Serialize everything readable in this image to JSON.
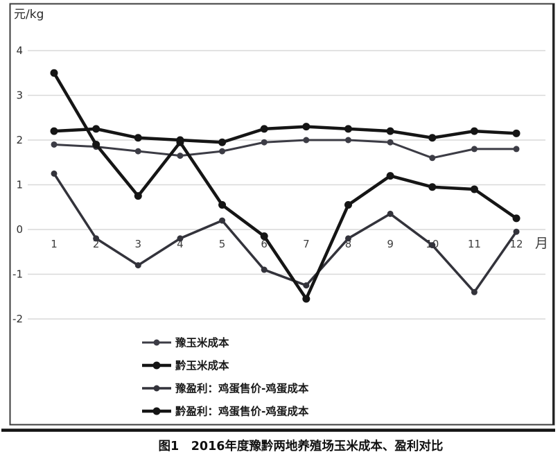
{
  "figure": {
    "unit_label": "元/kg",
    "x_axis_unit": "月",
    "caption": "图1　2016年度豫黔两地养殖场玉米成本、盈利对比"
  },
  "chart_data": {
    "type": "line",
    "title": "图1　2016年度豫黔两地养殖场玉米成本、盈利对比",
    "ylabel": "元/kg",
    "xlabel": "月",
    "ylim": [
      -2,
      4
    ],
    "y_ticks": [
      4,
      3,
      2,
      1,
      0,
      -1,
      -2
    ],
    "grid": true,
    "legend_position": "bottom",
    "categories": [
      "1",
      "2",
      "3",
      "4",
      "5",
      "6",
      "7",
      "8",
      "9",
      "10",
      "11",
      "12"
    ],
    "series": [
      {
        "name": "豫玉米成本",
        "color": "#3c3c45",
        "line_width": 3,
        "marker_radius": 4.5,
        "values": [
          1.9,
          1.85,
          1.75,
          1.65,
          1.75,
          1.95,
          2.0,
          2.0,
          1.95,
          1.6,
          1.8,
          1.8
        ]
      },
      {
        "name": "黔玉米成本",
        "color": "#151515",
        "line_width": 4.5,
        "marker_radius": 5.5,
        "values": [
          2.2,
          2.25,
          2.05,
          2.0,
          1.95,
          2.25,
          2.3,
          2.25,
          2.2,
          2.05,
          2.2,
          2.15
        ]
      },
      {
        "name": "豫盈利：鸡蛋售价-鸡蛋成本",
        "color": "#33333b",
        "line_width": 3.5,
        "marker_radius": 4.5,
        "values": [
          1.25,
          -0.2,
          -0.8,
          -0.2,
          0.2,
          -0.9,
          -1.25,
          -0.2,
          0.35,
          -0.35,
          -1.4,
          -0.05
        ]
      },
      {
        "name": "黔盈利：鸡蛋售价-鸡蛋成本",
        "color": "#151515",
        "line_width": 4.5,
        "marker_radius": 5.5,
        "values": [
          3.5,
          1.9,
          0.75,
          1.95,
          0.55,
          -0.15,
          -1.55,
          0.55,
          1.2,
          0.95,
          0.9,
          0.25
        ]
      }
    ]
  }
}
